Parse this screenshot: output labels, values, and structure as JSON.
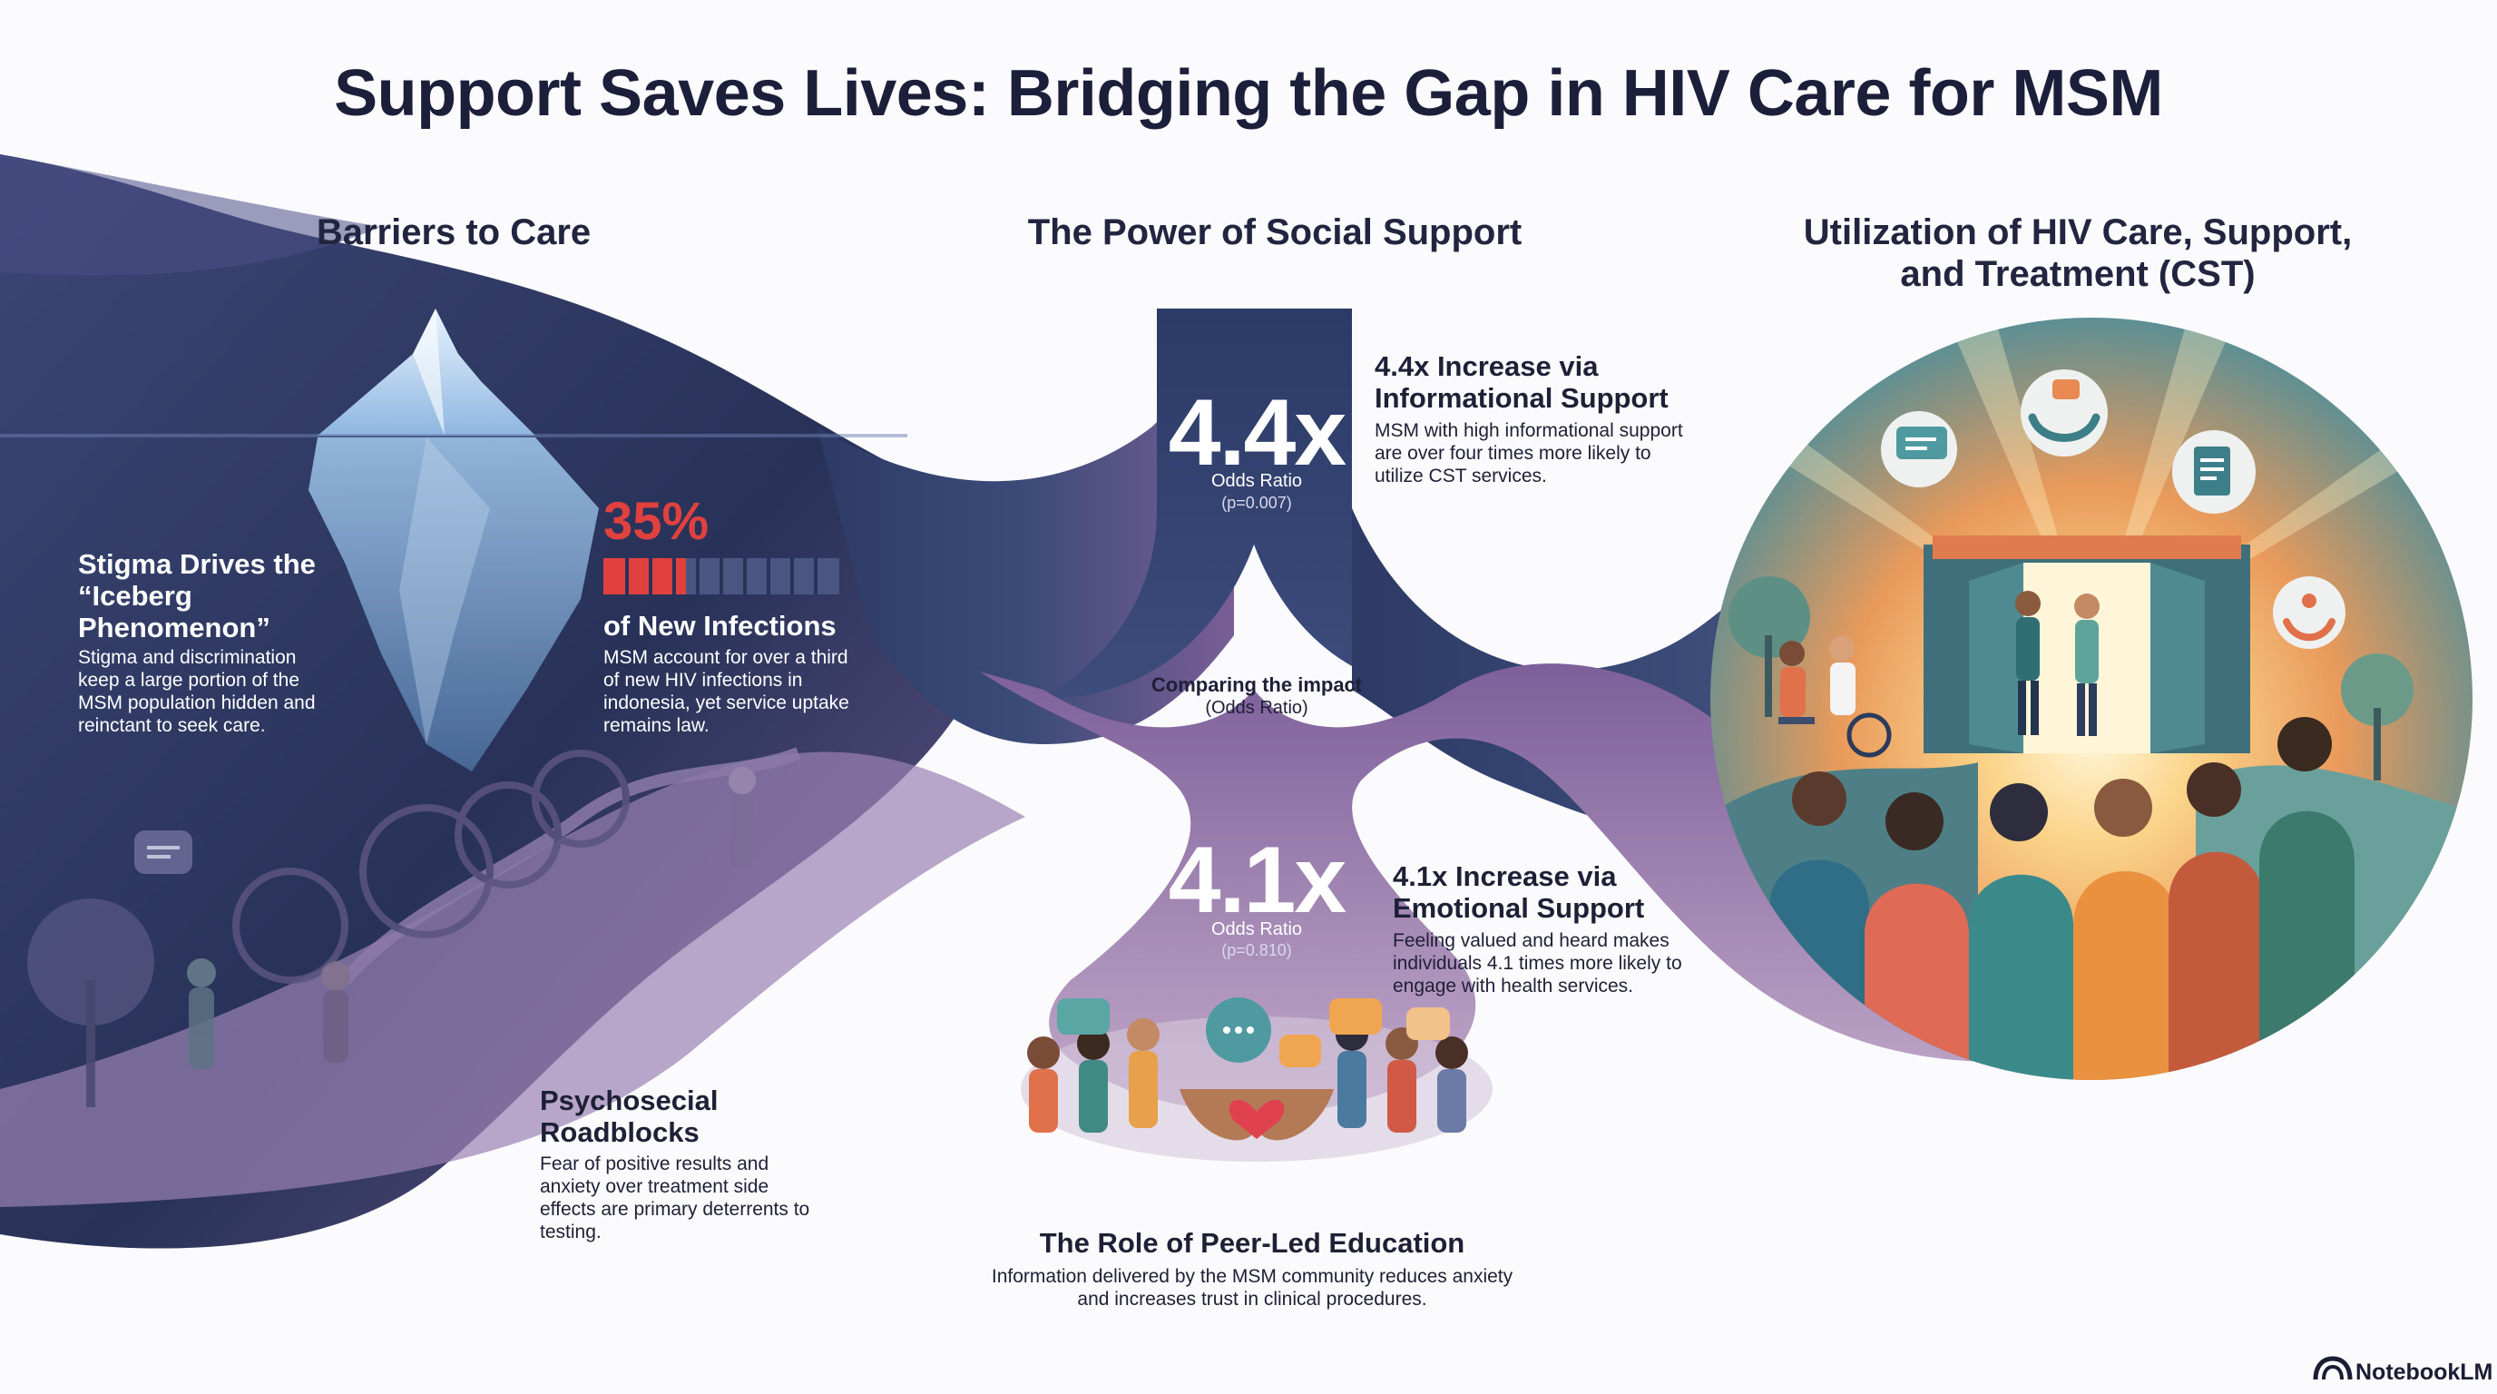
{
  "title": "Support Saves Lives: Bridging the Gap in HIV Care for MSM",
  "sections": {
    "barriers": "Barriers to Care",
    "social_support": "The Power of Social Support",
    "utilization": "Utilization of HIV Care, Support, and Treatment (CST)"
  },
  "stigma": {
    "heading": "Stigma Drives the “Iceberg Phenomenon”",
    "text": "Stigma and discrimination keep a large portion of the MSM population hidden and reinctant to seek care."
  },
  "infections": {
    "percent": "35%",
    "percent_value": 35,
    "heading": "of New Infections",
    "text": "MSM account for over a third of new HIV infections in indonesia, yet service uptake remains law."
  },
  "psychosocial": {
    "heading": "Psychosecial Roadblocks",
    "text": "Fear of positive results and anxiety over treatment side effects are primary deterrents to testing."
  },
  "informational": {
    "ratio": "4.4x",
    "odds_label": "Odds Ratio",
    "p_value": "(p=0.007)",
    "heading": "4.4x Increase via Informational Support",
    "text": "MSM with high informational support are over four times more likely to utilize CST services."
  },
  "comparing": {
    "heading": "Comparing the impact",
    "sub": "(Odds Ratio)"
  },
  "emotional": {
    "ratio": "4.1x",
    "odds_label": "Odds Ratio",
    "p_value": "(p=0.810)",
    "heading": "4.1x Increase via Emotional Support",
    "text": "Feeling valued and heard makes individuals 4.1 times more likely to engage with health services."
  },
  "peer": {
    "heading": "The Role of Peer-Led Education",
    "text": "Information delivered by the MSM community reduces anxiety and increases trust in clinical procedures."
  },
  "brand": "NotebookLM",
  "colors": {
    "navy": "#2c3a66",
    "purple": "#7a5e96",
    "accent_red": "#e0413f",
    "sun": "#f3a44b"
  },
  "icons": [
    "iceberg-illustration",
    "thorny-path-illustration",
    "chat-bubble-icon",
    "heart-hands-icon",
    "clinic-doors-illustration",
    "helping-hands-icon",
    "clipboard-icon",
    "notebooklm-logo-icon"
  ]
}
